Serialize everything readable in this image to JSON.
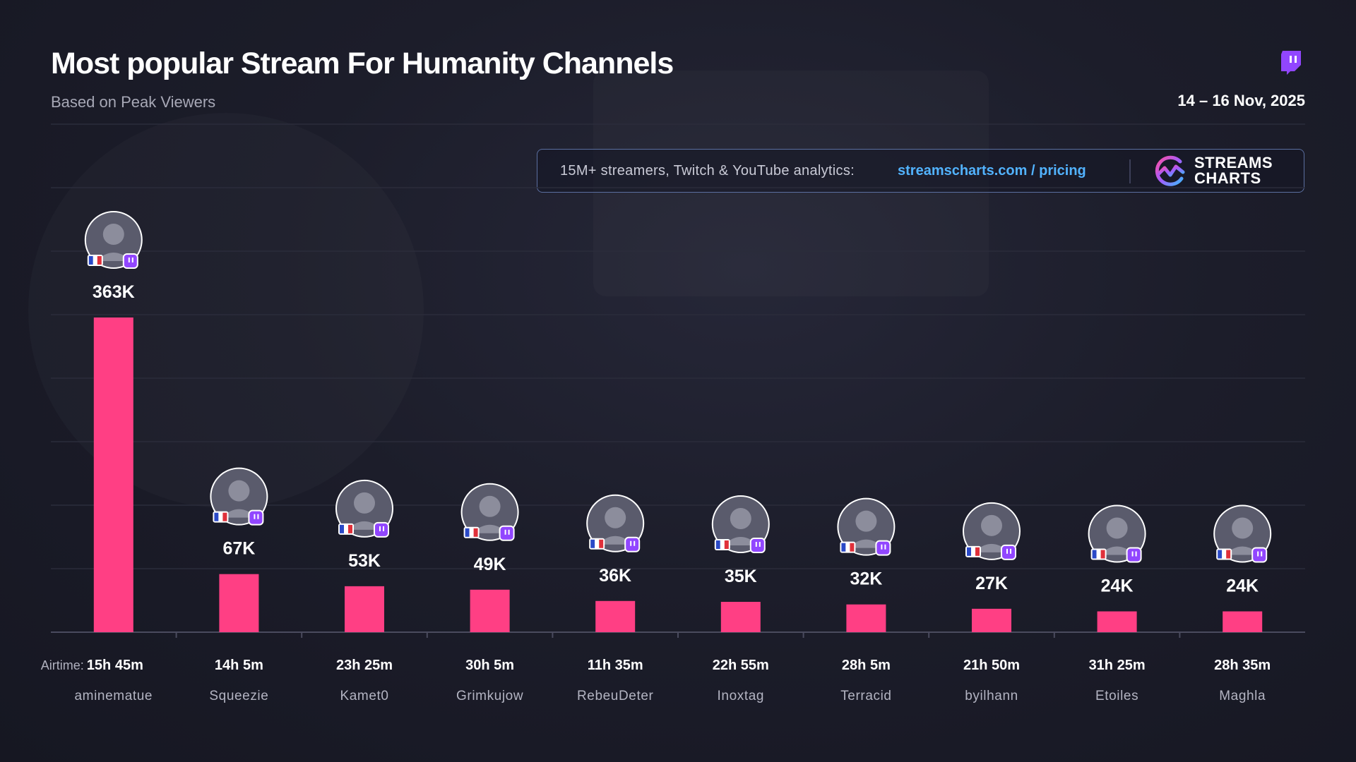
{
  "header": {
    "title": "Most popular Stream For Humanity Channels",
    "subtitle": "Based on Peak Viewers",
    "date_range": "14 – 16 Nov, 2025",
    "platform_icon": "twitch-icon"
  },
  "promo": {
    "text": "15M+ streamers, Twitch & YouTube analytics:",
    "link": "streamscharts.com / pricing",
    "brand_line1": "STREAMS",
    "brand_line2": "CHARTS"
  },
  "colors": {
    "bar": "#ff3f84",
    "accent_link": "#52b3ff",
    "twitch": "#9146ff"
  },
  "chart_data": {
    "type": "bar",
    "title": "Most popular Stream For Humanity Channels",
    "subtitle": "Based on Peak Viewers",
    "airtime_prefix": "Airtime:",
    "categories": [
      "aminematue",
      "Squeezie",
      "Kamet0",
      "Grimkujow",
      "RebeuDeter",
      "Inoxtag",
      "Terracid",
      "byilhann",
      "Etoiles",
      "Maghla"
    ],
    "values": [
      363000,
      67000,
      53000,
      49000,
      36000,
      35000,
      32000,
      27000,
      24000,
      24000
    ],
    "value_labels": [
      "363K",
      "67K",
      "53K",
      "49K",
      "36K",
      "35K",
      "32K",
      "27K",
      "24K",
      "24K"
    ],
    "airtime": [
      "15h 45m",
      "14h 5m",
      "23h 25m",
      "30h 5m",
      "11h 35m",
      "22h 55m",
      "28h 5m",
      "21h 50m",
      "31h 25m",
      "28h 35m"
    ],
    "ylim": [
      0,
      363000
    ],
    "grid": true,
    "legend": "none"
  }
}
